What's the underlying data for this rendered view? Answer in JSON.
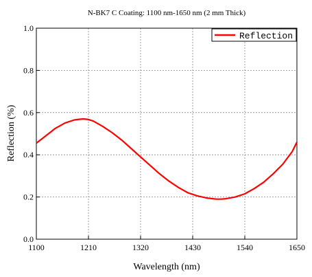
{
  "chart_data": {
    "type": "line",
    "title": "N-BK7 C Coating: 1100 nm-1650 nm (2 mm Thick)",
    "xlabel": "Wavelength (nm)",
    "ylabel": "Reflection (%)",
    "xlim": [
      1100,
      1650
    ],
    "ylim": [
      0.0,
      1.0
    ],
    "x_ticks": [
      1100,
      1210,
      1320,
      1430,
      1540,
      1650
    ],
    "y_ticks": [
      0.0,
      0.2,
      0.4,
      0.6,
      0.8,
      1.0
    ],
    "x_tick_labels": [
      "1100",
      "1210",
      "1320",
      "1430",
      "1540",
      "1650"
    ],
    "y_tick_labels": [
      "0.0",
      "0.2",
      "0.4",
      "0.6",
      "0.8",
      "1.0"
    ],
    "grid": true,
    "legend_position": "top-right",
    "series": [
      {
        "name": "Reflection",
        "color": "#ff0000",
        "x": [
          1100,
          1120,
          1140,
          1160,
          1180,
          1190,
          1200,
          1210,
          1220,
          1240,
          1260,
          1280,
          1300,
          1320,
          1340,
          1360,
          1380,
          1400,
          1420,
          1440,
          1460,
          1480,
          1490,
          1500,
          1520,
          1540,
          1560,
          1580,
          1600,
          1620,
          1640,
          1650
        ],
        "y": [
          0.455,
          0.49,
          0.525,
          0.55,
          0.565,
          0.568,
          0.57,
          0.567,
          0.56,
          0.535,
          0.505,
          0.47,
          0.43,
          0.39,
          0.35,
          0.31,
          0.275,
          0.245,
          0.22,
          0.205,
          0.195,
          0.19,
          0.19,
          0.192,
          0.2,
          0.215,
          0.24,
          0.27,
          0.31,
          0.355,
          0.415,
          0.46
        ]
      }
    ]
  }
}
